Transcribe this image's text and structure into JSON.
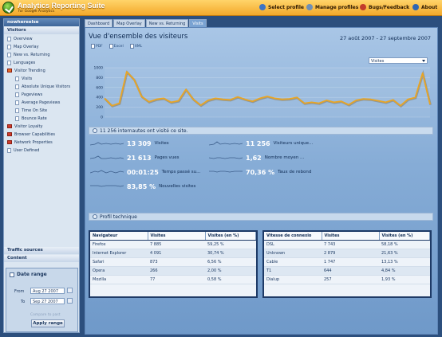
{
  "app": {
    "title": "Analytics Reporting Suite",
    "subtitle": "for Google Analytics",
    "menu": [
      {
        "label": "Select profile",
        "icon": "select-profile-icon"
      },
      {
        "label": "Manage profiles",
        "icon": "manage-profiles-icon"
      },
      {
        "label": "Bugs/Feedback",
        "icon": "bugs-icon"
      },
      {
        "label": "About",
        "icon": "about-icon"
      }
    ]
  },
  "sidebar": {
    "profile": "nowhereelse",
    "section_visitors": "Visitors",
    "items": [
      {
        "label": "Overview",
        "type": "doc"
      },
      {
        "label": "Map Overlay",
        "type": "doc"
      },
      {
        "label": "New vs. Returning",
        "type": "doc"
      },
      {
        "label": "Languages",
        "type": "doc"
      },
      {
        "label": "Visitor Trending",
        "type": "folder-open"
      },
      {
        "label": "Visits",
        "type": "doc",
        "level": 2
      },
      {
        "label": "Absolute Unique Visitors",
        "type": "doc",
        "level": 2
      },
      {
        "label": "Pageviews",
        "type": "doc",
        "level": 2
      },
      {
        "label": "Average Pageviews",
        "type": "doc",
        "level": 2
      },
      {
        "label": "Time On Site",
        "type": "doc",
        "level": 2
      },
      {
        "label": "Bounce Rate",
        "type": "doc",
        "level": 2
      },
      {
        "label": "Visitor Loyalty",
        "type": "folder"
      },
      {
        "label": "Browser Capabilities",
        "type": "folder"
      },
      {
        "label": "Network Properties",
        "type": "folder"
      },
      {
        "label": "User Defined",
        "type": "doc"
      }
    ],
    "section_traffic": "Traffic sources",
    "section_content": "Content",
    "date_range": {
      "title": "Date range",
      "from_label": "From",
      "from_value": "Aug 27 2007",
      "to_label": "To",
      "to_value": "Sep 27 2007",
      "compare_label": "Compare to past",
      "apply_label": "Apply range"
    }
  },
  "tabs": [
    {
      "label": "Dashboard",
      "active": false
    },
    {
      "label": "Map Overlay",
      "active": false
    },
    {
      "label": "New vs. Returning",
      "active": false
    },
    {
      "label": "Visits",
      "active": true
    }
  ],
  "main": {
    "title": "Vue d'ensemble des visiteurs",
    "date_range": "27 août 2007 - 27 septembre 2007",
    "exports": [
      "PDF",
      "Excel",
      "XML"
    ],
    "metric_select": "Visites",
    "summary": "11 256 internautes ont visité ce site.",
    "metrics": [
      {
        "value": "13 309",
        "label": "Visites"
      },
      {
        "value": "11 256",
        "label": "Visiteurs unique..."
      },
      {
        "value": "21 613",
        "label": "Pages vues"
      },
      {
        "value": "1,62",
        "label": "Nombre moyen ..."
      },
      {
        "value": "00:01:25",
        "label": "Temps passé su..."
      },
      {
        "value": "70,36 %",
        "label": "Taux de rebond"
      },
      {
        "value": "83,85 %",
        "label": "Nouvelles visites"
      }
    ],
    "tech_profile": "Profil technique",
    "browser_table": {
      "headers": [
        "Navigateur",
        "Visites",
        "Visites (en %)"
      ],
      "rows": [
        [
          "Firefox",
          "7 885",
          "59,25 %"
        ],
        [
          "Internet Explorer",
          "4 091",
          "30,74 %"
        ],
        [
          "Safari",
          "873",
          "6,56 %"
        ],
        [
          "Opera",
          "266",
          "2,00 %"
        ],
        [
          "Mozilla",
          "77",
          "0,58 %"
        ]
      ]
    },
    "connection_table": {
      "headers": [
        "Vitesse de connexio",
        "Visites",
        "Visites (en %)"
      ],
      "rows": [
        [
          "DSL",
          "7 743",
          "58,18 %"
        ],
        [
          "Unknown",
          "2 879",
          "21,63 %"
        ],
        [
          "Cable",
          "1 747",
          "13,13 %"
        ],
        [
          "T1",
          "644",
          "4,84 %"
        ],
        [
          "Dialup",
          "257",
          "1,93 %"
        ]
      ]
    }
  },
  "chart_data": {
    "type": "line",
    "series": [
      {
        "values": [
          380,
          230,
          280,
          920,
          760,
          420,
          310,
          360,
          380,
          300,
          330,
          560,
          360,
          240,
          340,
          380,
          360,
          350,
          410,
          360,
          320,
          380,
          420,
          380,
          360,
          370,
          400,
          280,
          300,
          280,
          340,
          300,
          320,
          250,
          340,
          370,
          360,
          330,
          300,
          350,
          230,
          360,
          400,
          890,
          260
        ]
      }
    ],
    "yticks": [
      "0",
      "200",
      "400",
      "600",
      "800",
      "1000"
    ],
    "ylim": [
      0,
      1000
    ],
    "line_color": "#e9a524",
    "grid": true
  }
}
